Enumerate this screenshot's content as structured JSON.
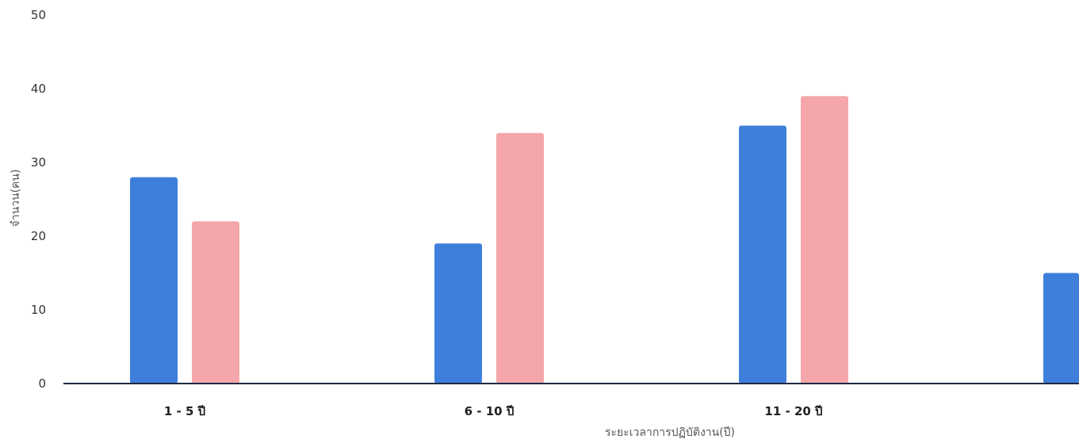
{
  "chart_data": {
    "type": "bar",
    "title": "",
    "xlabel": "ระยะเวลาการปฏิบัติงาน(ปี)",
    "ylabel": "จำนวน(คน)",
    "ylim": [
      0,
      50
    ],
    "yticks": [
      0,
      10,
      20,
      30,
      40,
      50
    ],
    "grid": false,
    "legend": "none",
    "categories": [
      "1 - 5 ปี",
      "6 - 10 ปี",
      "11 - 20 ปี",
      ""
    ],
    "series": [
      {
        "color": "#3f7fdc",
        "values": [
          28,
          19,
          35,
          15
        ]
      },
      {
        "color": "#f4a6aa",
        "values": [
          22,
          34,
          39,
          null
        ]
      }
    ]
  }
}
